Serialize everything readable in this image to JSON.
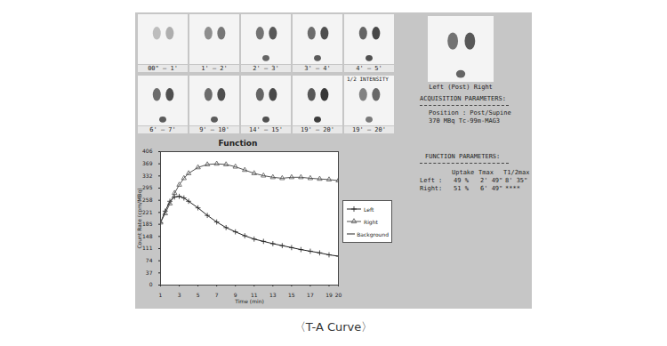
{
  "frames": [
    "00\" – 1'",
    "1' – 2'",
    "2' – 3'",
    "3' – 4'",
    "4' – 5'",
    "6' – 7'",
    "9' – 10'",
    "14' – 15'",
    "19' – 20'",
    "19' – 20'"
  ],
  "frame_note": "1/2 INTENSITY",
  "summary_image_label": "Left (Post) Right",
  "acquisition": {
    "title": "ACQUISITION PARAMETERS:",
    "lines": [
      "Position : Post/Supine",
      "370 MBq Tc-99m-MAG3"
    ]
  },
  "function_parameters": {
    "title": "FUNCTION PARAMETERS:",
    "header": [
      "Uptake",
      "Tmax",
      "T1/2max"
    ],
    "rows": [
      {
        "label": "Left :",
        "cells": [
          "49 %",
          "2' 49\"",
          "8' 35\""
        ]
      },
      {
        "label": "Right:",
        "cells": [
          "51 %",
          "6' 49\"",
          "****"
        ]
      }
    ]
  },
  "caption": "〈T-A Curve〉",
  "chart_data": {
    "type": "line",
    "title": "Function",
    "x_label": "Time (min)",
    "y_label": "Count Rate (cpm/MBq)",
    "x": [
      1,
      1.5,
      2,
      2.5,
      3,
      3.5,
      4,
      5,
      6,
      7,
      8,
      9,
      10,
      11,
      12,
      13,
      14,
      15,
      16,
      17,
      18,
      19,
      20
    ],
    "series": [
      {
        "name": "Left",
        "color": "#222222",
        "marker": "plus",
        "line_style": "solid",
        "values": [
          190,
          225,
          255,
          268,
          270,
          265,
          255,
          235,
          212,
          192,
          175,
          162,
          150,
          140,
          133,
          126,
          120,
          114,
          108,
          103,
          98,
          92,
          88
        ]
      },
      {
        "name": "Right",
        "color": "#555555",
        "marker": "triangle",
        "line_style": "solid",
        "values": [
          190,
          218,
          248,
          280,
          305,
          325,
          340,
          358,
          367,
          369,
          367,
          360,
          350,
          340,
          333,
          328,
          325,
          328,
          328,
          325,
          323,
          321,
          318
        ]
      },
      {
        "name": "Background",
        "color": "#222222",
        "marker": "none",
        "line_style": "solid",
        "values": [
          null,
          null,
          null,
          null,
          null,
          null,
          null,
          null,
          null,
          null,
          null,
          null,
          null,
          null,
          null,
          null,
          null,
          null,
          null,
          null,
          null,
          null,
          null
        ]
      }
    ],
    "xlim": [
      1,
      20
    ],
    "xticks": [
      1,
      3,
      5,
      7,
      9,
      11,
      13,
      15,
      17,
      19,
      20
    ],
    "ylim": [
      0,
      406
    ],
    "yticks": [
      0,
      37,
      74,
      111,
      148,
      185,
      221,
      258,
      295,
      332,
      369,
      406
    ],
    "grid": false,
    "legend": "right"
  }
}
